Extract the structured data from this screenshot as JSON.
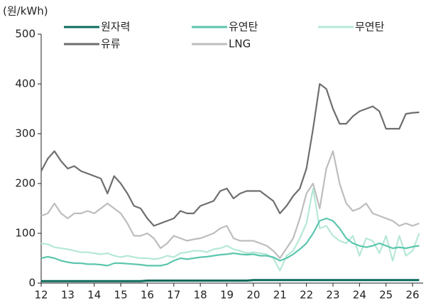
{
  "chart_data": {
    "type": "line",
    "y_axis_label": "(원/kWh)",
    "x": [
      12,
      12.25,
      12.5,
      12.75,
      13,
      13.25,
      13.5,
      13.75,
      14,
      14.25,
      14.5,
      14.75,
      15,
      15.25,
      15.5,
      15.75,
      16,
      16.25,
      16.5,
      16.75,
      17,
      17.25,
      17.5,
      17.75,
      18,
      18.25,
      18.5,
      18.75,
      19,
      19.25,
      19.5,
      19.75,
      20,
      20.25,
      20.5,
      20.75,
      21,
      21.25,
      21.5,
      21.75,
      22,
      22.25,
      22.5,
      22.75,
      23,
      23.25,
      23.5,
      23.75,
      24,
      24.25,
      24.5,
      24.75,
      25,
      25.25,
      25.5,
      25.75,
      26,
      26.25
    ],
    "xlim": [
      12,
      26.4
    ],
    "xticks": [
      12,
      13,
      14,
      15,
      16,
      17,
      18,
      19,
      20,
      21,
      22,
      23,
      24,
      25,
      26
    ],
    "ylim": [
      0,
      500
    ],
    "yticks": [
      0,
      100,
      200,
      300,
      400,
      500
    ],
    "grid": false,
    "series": [
      {
        "name": "원자력",
        "color": "#0b6b5c",
        "values": [
          4,
          4,
          4,
          4,
          4,
          4,
          4,
          4,
          4,
          4,
          4,
          4,
          4,
          4,
          4,
          4,
          5,
          5,
          5,
          5,
          5,
          5,
          5,
          5,
          5,
          5,
          5,
          5,
          5,
          5,
          5,
          5,
          6,
          6,
          6,
          6,
          6,
          6,
          6,
          6,
          6,
          6,
          6,
          6,
          6,
          6,
          6,
          6,
          6,
          6,
          6,
          6,
          6,
          6,
          6,
          6,
          6,
          6
        ]
      },
      {
        "name": "유연탄",
        "color": "#5cc6ae",
        "values": [
          50,
          53,
          50,
          45,
          42,
          40,
          40,
          38,
          38,
          37,
          35,
          40,
          40,
          39,
          38,
          37,
          35,
          35,
          35,
          38,
          45,
          50,
          48,
          50,
          52,
          53,
          55,
          57,
          58,
          60,
          58,
          57,
          58,
          55,
          55,
          52,
          45,
          50,
          58,
          68,
          80,
          100,
          125,
          130,
          125,
          110,
          90,
          80,
          75,
          72,
          75,
          80,
          75,
          70,
          72,
          70,
          73,
          75
        ]
      },
      {
        "name": "무연탄",
        "color": "#b6e8d6",
        "values": [
          80,
          78,
          72,
          70,
          68,
          65,
          62,
          62,
          60,
          58,
          60,
          55,
          52,
          55,
          52,
          50,
          50,
          48,
          50,
          55,
          52,
          60,
          62,
          65,
          65,
          62,
          68,
          70,
          75,
          68,
          65,
          60,
          62,
          60,
          58,
          50,
          25,
          55,
          65,
          90,
          120,
          190,
          110,
          115,
          95,
          85,
          80,
          95,
          55,
          90,
          85,
          60,
          95,
          45,
          95,
          55,
          65,
          100
        ]
      },
      {
        "name": "유류",
        "color": "#6e6e6e",
        "values": [
          225,
          250,
          265,
          245,
          230,
          235,
          225,
          220,
          215,
          210,
          180,
          215,
          200,
          180,
          155,
          150,
          130,
          115,
          120,
          125,
          130,
          145,
          140,
          140,
          155,
          160,
          165,
          185,
          190,
          170,
          180,
          185,
          185,
          185,
          175,
          165,
          140,
          155,
          175,
          190,
          230,
          310,
          400,
          390,
          350,
          320,
          320,
          335,
          345,
          350,
          355,
          345,
          310,
          310,
          310,
          340,
          342,
          343
        ]
      },
      {
        "name": "LNG",
        "color": "#bdbdbd",
        "values": [
          135,
          140,
          160,
          140,
          130,
          140,
          140,
          145,
          140,
          150,
          160,
          150,
          140,
          120,
          95,
          95,
          100,
          90,
          70,
          80,
          95,
          90,
          85,
          88,
          90,
          95,
          100,
          110,
          115,
          90,
          85,
          85,
          85,
          80,
          75,
          65,
          50,
          70,
          90,
          130,
          180,
          200,
          150,
          230,
          265,
          200,
          160,
          145,
          150,
          160,
          140,
          135,
          130,
          125,
          115,
          120,
          115,
          120
        ]
      }
    ]
  }
}
